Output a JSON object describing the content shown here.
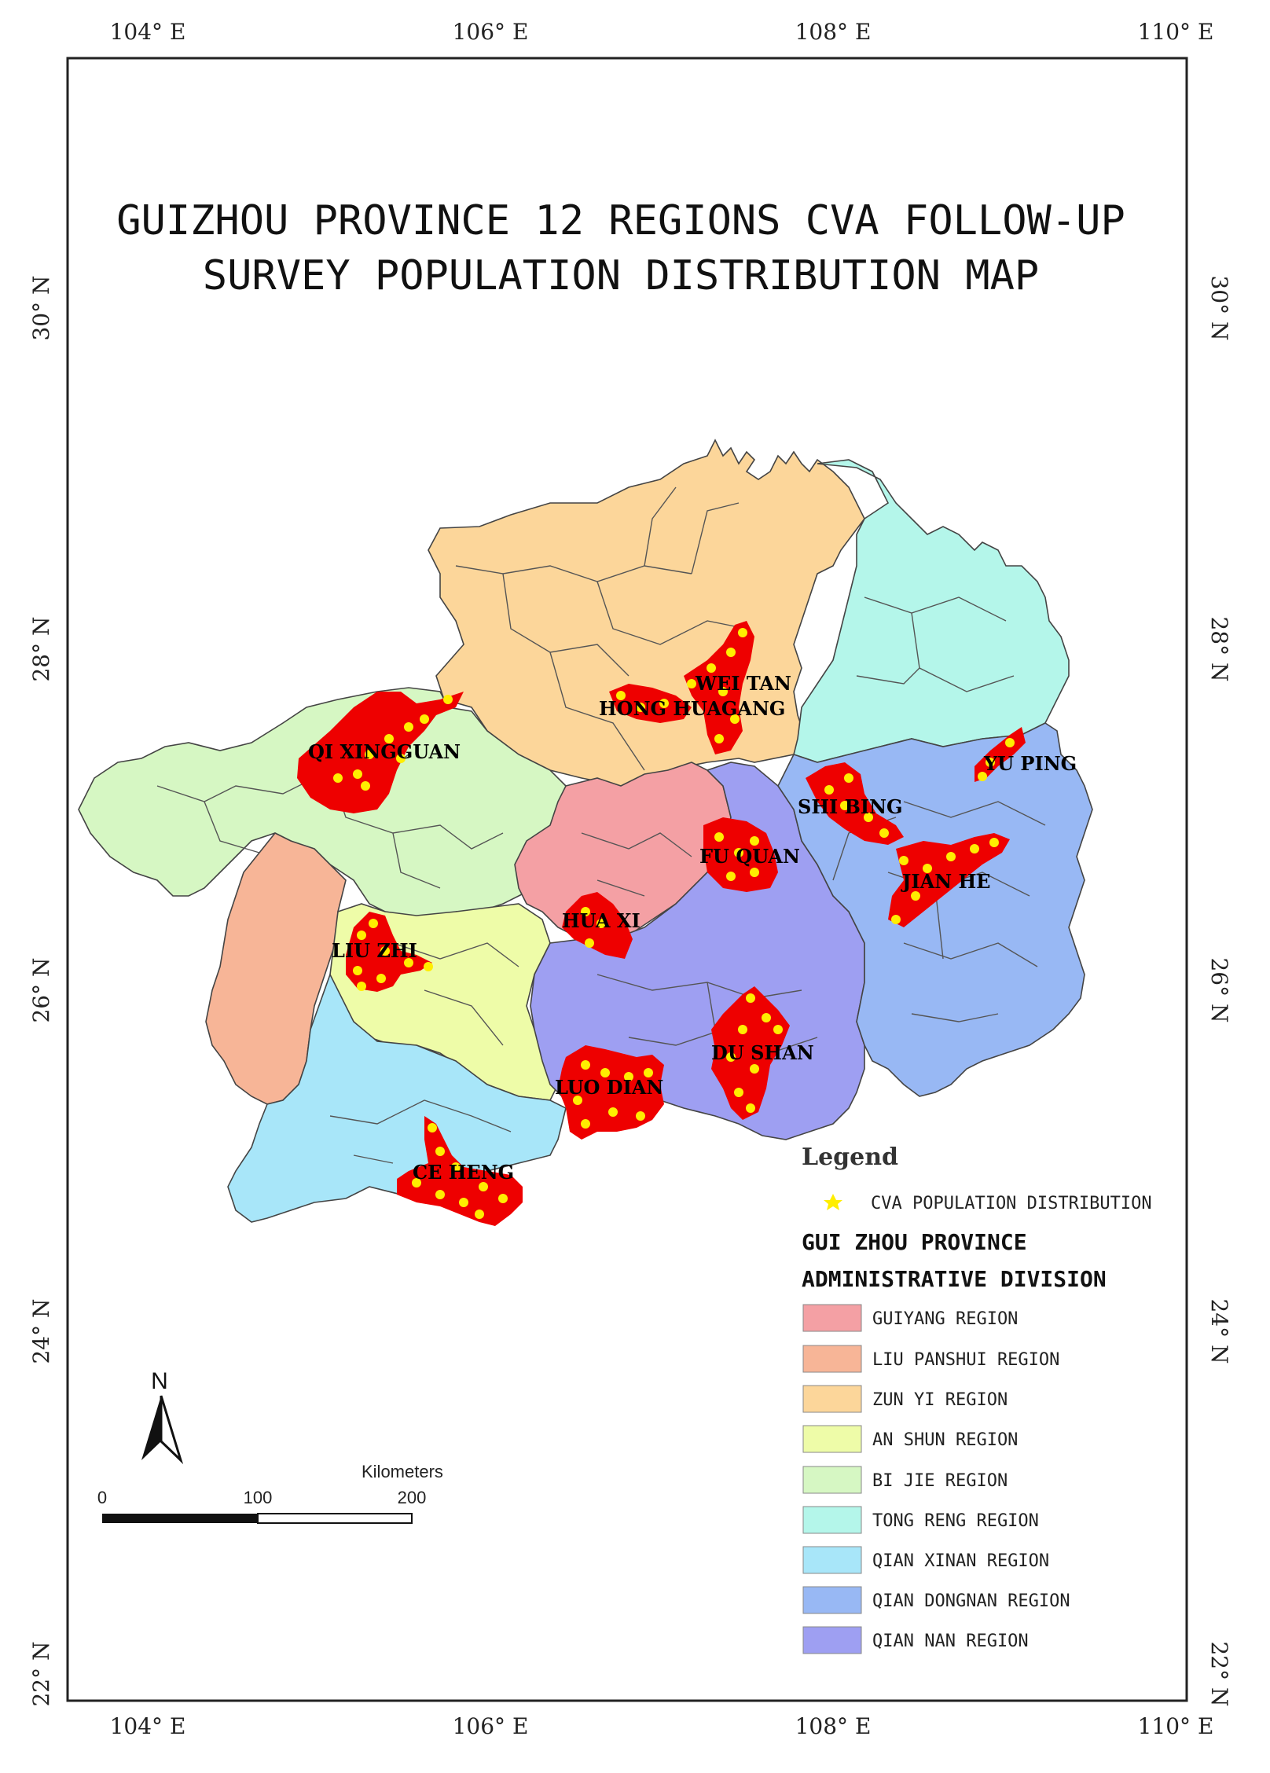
{
  "title_line1": "GUIZHOU PROVINCE 12 REGIONS CVA FOLLOW-UP",
  "title_line2": "SURVEY POPULATION DISTRIBUTION MAP",
  "longitude_labels": [
    "104° E",
    "106° E",
    "108° E",
    "110° E"
  ],
  "latitude_labels": [
    "30° N",
    "28° N",
    "26° N",
    "24° N",
    "22° N"
  ],
  "study_regions": [
    "QI XINGGUAN",
    "HONG HUAGANG",
    "WEI TAN",
    "YU PING",
    "SHI BING",
    "FU QUAN",
    "JIAN HE",
    "HUA XI",
    "LIU ZHI",
    "DU SHAN",
    "LUO DIAN",
    "CE HENG"
  ],
  "legend": {
    "title": "Legend",
    "point_label": "CVA POPULATION DISTRIBUTION",
    "point_color": "#ffee00",
    "division_heading_line1": "GUI ZHOU PROVINCE",
    "division_heading_line2": "ADMINISTRATIVE DIVISION",
    "regions": [
      {
        "name": "GUIYANG REGION",
        "color": "#f4a0a4"
      },
      {
        "name": "LIU PANSHUI REGION",
        "color": "#f7b597"
      },
      {
        "name": "ZUN YI REGION",
        "color": "#fcd69a"
      },
      {
        "name": "AN SHUN REGION",
        "color": "#eefca8"
      },
      {
        "name": "BI JIE REGION",
        "color": "#d6f7c3"
      },
      {
        "name": "TONG RENG REGION",
        "color": "#b4f6ea"
      },
      {
        "name": "QIAN XINAN REGION",
        "color": "#a8e6f9"
      },
      {
        "name": "QIAN DONGNAN REGION",
        "color": "#98b8f4"
      },
      {
        "name": "QIAN NAN REGION",
        "color": "#9e9ff2"
      }
    ]
  },
  "study_area_color": "#ee0000",
  "north_arrow_label": "N",
  "scale_bar": {
    "unit": "Kilometers",
    "ticks": [
      "0",
      "100",
      "200"
    ]
  }
}
